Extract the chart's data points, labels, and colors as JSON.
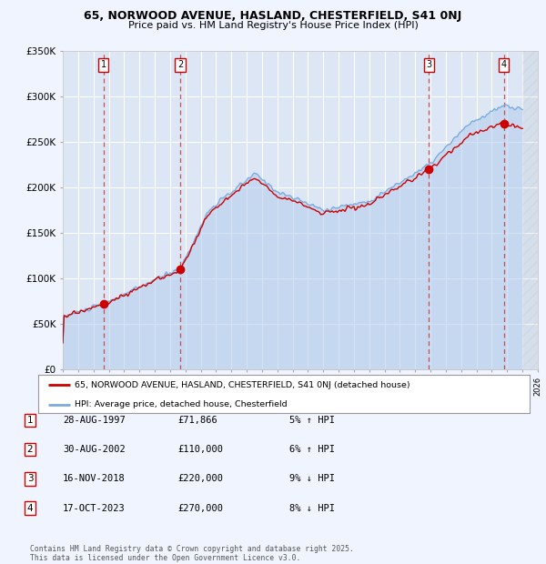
{
  "title_line1": "65, NORWOOD AVENUE, HASLAND, CHESTERFIELD, S41 0NJ",
  "title_line2": "Price paid vs. HM Land Registry's House Price Index (HPI)",
  "background_color": "#f0f4ff",
  "plot_bg_color": "#dce6f5",
  "grid_color": "#ffffff",
  "ylim": [
    0,
    350000
  ],
  "yticks": [
    0,
    50000,
    100000,
    150000,
    200000,
    250000,
    300000,
    350000
  ],
  "ytick_labels": [
    "£0",
    "£50K",
    "£100K",
    "£150K",
    "£200K",
    "£250K",
    "£300K",
    "£350K"
  ],
  "x_start_year": 1995,
  "x_end_year": 2026,
  "sale_color": "#cc0000",
  "hpi_color": "#7aaadd",
  "hpi_fill_color": "#b8d0ee",
  "marker_color": "#cc0000",
  "vline_color": "#cc3333",
  "sale_dates_num": [
    1997.66,
    2002.66,
    2018.88,
    2023.79
  ],
  "sale_prices": [
    71866,
    110000,
    220000,
    270000
  ],
  "sale_labels": [
    "1",
    "2",
    "3",
    "4"
  ],
  "legend_label_red": "65, NORWOOD AVENUE, HASLAND, CHESTERFIELD, S41 0NJ (detached house)",
  "legend_label_blue": "HPI: Average price, detached house, Chesterfield",
  "table_rows": [
    [
      "1",
      "28-AUG-1997",
      "£71,866",
      "5% ↑ HPI"
    ],
    [
      "2",
      "30-AUG-2002",
      "£110,000",
      "6% ↑ HPI"
    ],
    [
      "3",
      "16-NOV-2018",
      "£220,000",
      "9% ↓ HPI"
    ],
    [
      "4",
      "17-OCT-2023",
      "£270,000",
      "8% ↓ HPI"
    ]
  ],
  "footer": "Contains HM Land Registry data © Crown copyright and database right 2025.\nThis data is licensed under the Open Government Licence v3.0."
}
